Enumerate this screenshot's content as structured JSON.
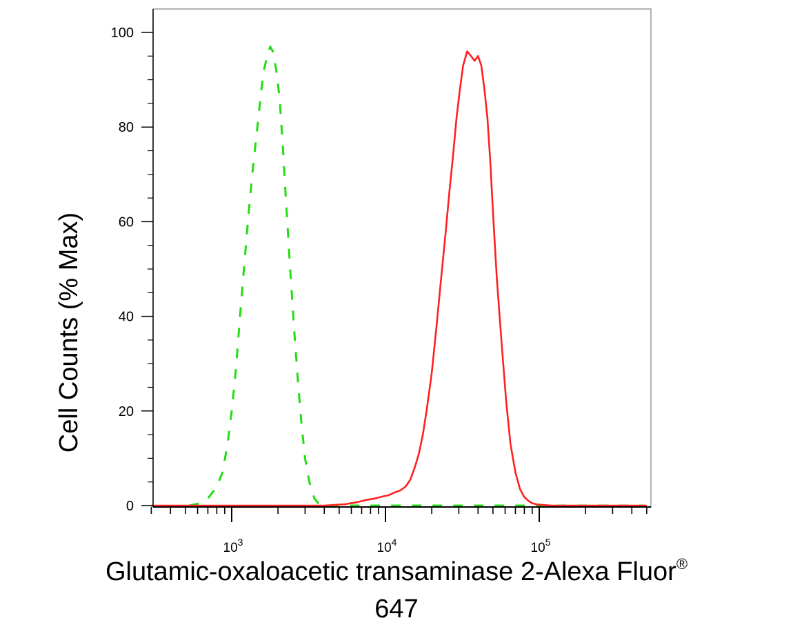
{
  "chart_data": {
    "type": "line",
    "xlabel": "Glutamic-oxaloacetic transaminase 2-Alexa Fluor",
    "xlabel_superscript": "®",
    "xlabel_line2": "647",
    "ylabel": "Cell Counts (% Max)",
    "x_scale": "log",
    "xlim": [
      300,
      500000
    ],
    "ylim": [
      0,
      105
    ],
    "y_ticks": [
      "0",
      "20",
      "40",
      "60",
      "80",
      "100"
    ],
    "x_major_ticks": [
      {
        "base": "10",
        "exp": "3",
        "value": 1000
      },
      {
        "base": "10",
        "exp": "4",
        "value": 10000
      },
      {
        "base": "10",
        "exp": "5",
        "value": 100000
      }
    ],
    "grid": false,
    "legend": "none",
    "series": [
      {
        "style": "dashed",
        "color": "#22dd11",
        "x": [
          530,
          620,
          700,
          800,
          870,
          940,
          1000,
          1060,
          1120,
          1200,
          1290,
          1380,
          1480,
          1560,
          1620,
          1700,
          1780,
          1850,
          1950,
          2050,
          2150,
          2250,
          2400,
          2550,
          2700,
          2850,
          3000,
          3200,
          3450,
          3700,
          4000,
          5000,
          20000,
          100000,
          480000
        ],
        "y": [
          0,
          0.5,
          1.5,
          4,
          7,
          13,
          20,
          28,
          38,
          50,
          62,
          72,
          81,
          88,
          92,
          95,
          97,
          96,
          92,
          86,
          76,
          65,
          50,
          37,
          26,
          17,
          10,
          5,
          1.5,
          0.3,
          0,
          0,
          0,
          0,
          0
        ]
      },
      {
        "style": "solid",
        "color": "#ff2020",
        "x": [
          300,
          4000,
          5500,
          6500,
          7500,
          8500,
          9500,
          10500,
          11500,
          12500,
          13500,
          14500,
          15500,
          16500,
          17500,
          18500,
          20000,
          21500,
          23000,
          24500,
          26000,
          27500,
          29000,
          30500,
          32000,
          34000,
          36000,
          38000,
          40000,
          42000,
          44000,
          46000,
          48000,
          50000,
          53000,
          57000,
          61000,
          65000,
          70000,
          75000,
          80000,
          85000,
          90000,
          95000,
          100000,
          110000,
          120000,
          135000,
          500000
        ],
        "y": [
          0,
          0,
          0.3,
          0.7,
          1.2,
          1.5,
          1.9,
          2.2,
          2.8,
          3.2,
          4,
          5.5,
          8,
          11,
          15,
          20,
          28,
          38,
          48,
          57,
          66,
          74,
          82,
          88,
          93,
          96,
          95,
          94,
          95,
          93,
          88,
          82,
          73,
          62,
          48,
          34,
          22,
          13,
          7,
          3.5,
          1.8,
          1,
          0.5,
          0.3,
          0.2,
          0.1,
          0,
          0,
          0
        ]
      }
    ]
  }
}
